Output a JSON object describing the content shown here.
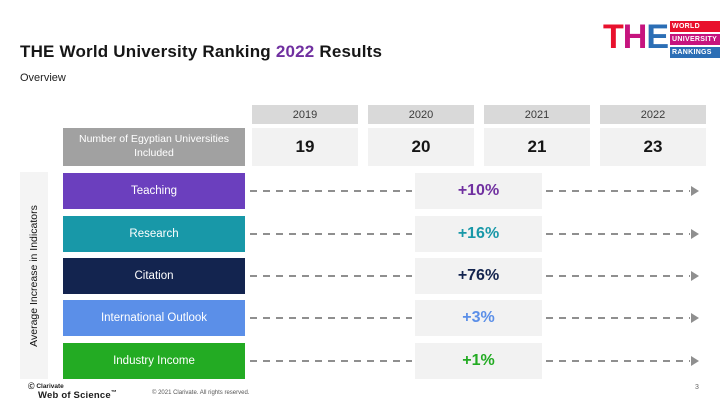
{
  "slide": {
    "title_prefix": "THE World University Ranking ",
    "title_year": "2022",
    "title_suffix": " Results",
    "title_year_color": "#7030A0",
    "subtitle": "Overview",
    "page_number": "3"
  },
  "logo": {
    "letters": [
      {
        "char": "T",
        "color": "#E8112D"
      },
      {
        "char": "H",
        "color": "#C6147E"
      },
      {
        "char": "E",
        "color": "#2B6EB5"
      }
    ],
    "bars": [
      {
        "label": "WORLD",
        "color": "#E8112D"
      },
      {
        "label": "UNIVERSITY",
        "color": "#C6147E"
      },
      {
        "label": "RANKINGS",
        "color": "#2B6EB5"
      }
    ]
  },
  "table": {
    "years": [
      "2019",
      "2020",
      "2021",
      "2022"
    ],
    "row_label": "Number of Egyptian Universities Included",
    "counts": [
      "19",
      "20",
      "21",
      "23"
    ]
  },
  "indicators": {
    "axis_label": "Average Increase in Indicators",
    "rows": [
      {
        "label": "Teaching",
        "value": "+10%",
        "color": "#6B3FBE",
        "value_color": "#7030A0"
      },
      {
        "label": "Research",
        "value": "+16%",
        "color": "#1898A8",
        "value_color": "#1898A8"
      },
      {
        "label": "Citation",
        "value": "+76%",
        "color": "#13244F",
        "value_color": "#13244F"
      },
      {
        "label": "International Outlook",
        "value": "+3%",
        "color": "#5B8FE8",
        "value_color": "#5B8FE8"
      },
      {
        "label": "Industry Income",
        "value": "+1%",
        "color": "#23AB23",
        "value_color": "#23AB23"
      }
    ]
  },
  "footer": {
    "brand_mark": "Ⓒ",
    "brand": "Clarivate",
    "product": "Web of Science",
    "trademark": "™",
    "copyright": "© 2021 Clarivate. All rights reserved."
  },
  "chart_data": {
    "type": "table",
    "title": "THE World University Ranking 2022 Results",
    "subtitle": "Overview",
    "columns": [
      "2019",
      "2020",
      "2021",
      "2022"
    ],
    "rows": [
      {
        "label": "Number of Egyptian Universities Included",
        "values": [
          19,
          20,
          21,
          23
        ]
      }
    ],
    "indicator_series": {
      "axis_label": "Average Increase in Indicators",
      "series": [
        {
          "name": "Teaching",
          "value_pct": 10
        },
        {
          "name": "Research",
          "value_pct": 16
        },
        {
          "name": "Citation",
          "value_pct": 76
        },
        {
          "name": "International Outlook",
          "value_pct": 3
        },
        {
          "name": "Industry Income",
          "value_pct": 1
        }
      ]
    }
  }
}
